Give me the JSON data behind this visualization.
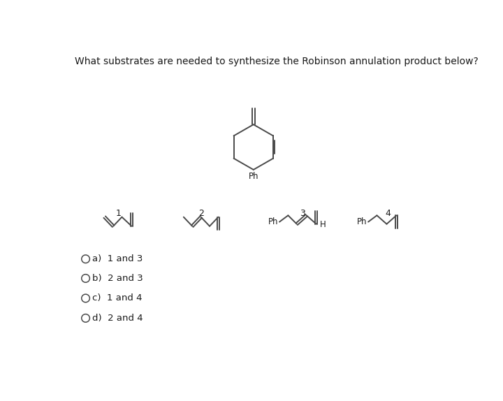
{
  "title": "What substrates are needed to synthesize the Robinson annulation product below?",
  "title_fontsize": 10.0,
  "bg_color": "#ffffff",
  "text_color": "#1a1a1a",
  "choices": [
    "a)  1 and 3",
    "b)  2 and 3",
    "c)  1 and 4",
    "d)  2 and 4"
  ],
  "line_color": "#4a4a4a",
  "line_width": 1.4
}
